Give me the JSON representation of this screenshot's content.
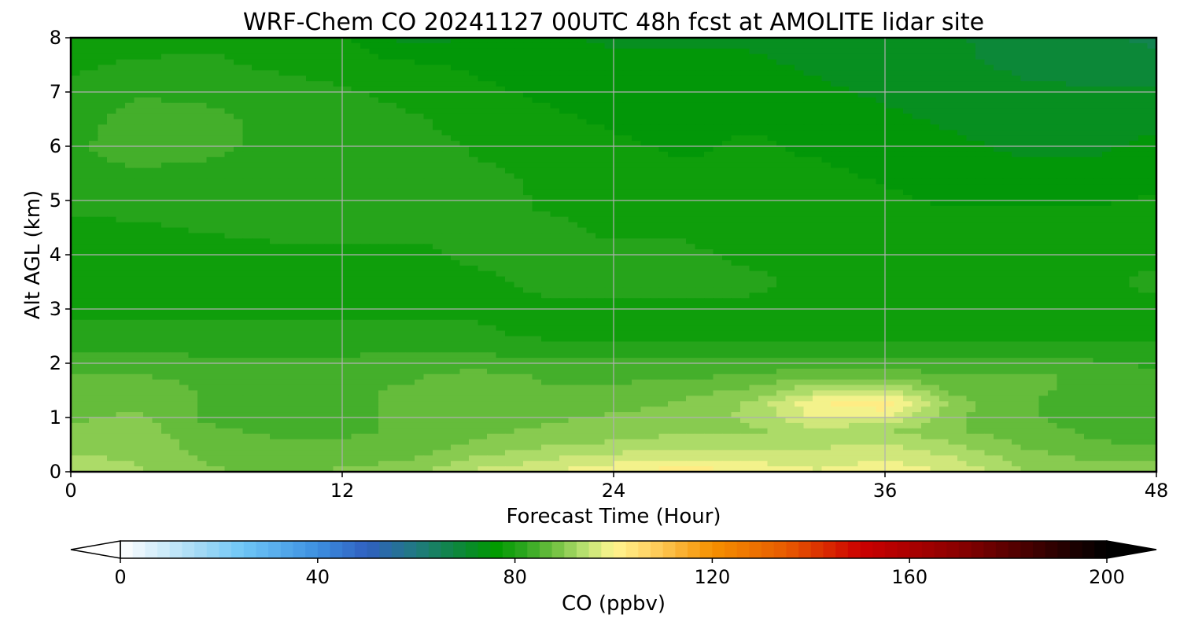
{
  "chart_data": {
    "type": "heatmap",
    "title": "WRF-Chem CO  20241127 00UTC 48h fcst at AMOLITE lidar site",
    "xlabel": "Forecast Time (Hour)",
    "ylabel": "Alt AGL (km)",
    "xlim": [
      0,
      48
    ],
    "ylim": [
      0,
      8
    ],
    "xticks": [
      0,
      12,
      24,
      36,
      48
    ],
    "yticks": [
      0,
      1,
      2,
      3,
      4,
      5,
      6,
      7,
      8
    ],
    "grid": true,
    "x": [
      0,
      3,
      6,
      9,
      12,
      15,
      18,
      21,
      24,
      27,
      30,
      33,
      36,
      39,
      42,
      45,
      48
    ],
    "y": [
      0,
      0.25,
      0.5,
      0.75,
      1.0,
      1.25,
      1.5,
      1.75,
      2.0,
      2.25,
      2.5,
      3.0,
      3.5,
      4.0,
      4.5,
      5.0,
      5.5,
      6.0,
      6.5,
      7.0,
      7.5,
      8.0
    ],
    "z": [
      [
        95,
        92,
        89,
        88,
        89,
        91,
        95,
        97,
        100,
        102,
        101,
        98,
        100,
        97,
        92,
        90,
        92
      ],
      [
        92,
        91,
        88,
        87,
        87,
        88,
        92,
        94,
        96,
        97,
        96,
        95,
        97,
        95,
        90,
        88,
        88
      ],
      [
        90,
        91,
        87,
        86,
        86,
        87,
        89,
        91,
        92,
        93,
        93,
        94,
        95,
        92,
        88,
        86,
        85
      ],
      [
        89,
        90,
        86,
        85,
        85,
        86,
        88,
        89,
        90,
        91,
        91,
        93,
        92,
        89,
        87,
        85,
        84
      ],
      [
        88,
        89,
        85,
        84,
        85,
        86,
        87,
        88,
        89,
        90,
        92,
        98,
        97,
        89,
        86,
        84,
        83
      ],
      [
        88,
        88,
        85,
        84,
        85,
        86,
        87,
        87,
        87,
        89,
        92,
        100,
        103,
        90,
        86,
        84,
        83
      ],
      [
        87,
        88,
        85,
        85,
        85,
        86,
        88,
        86,
        86,
        87,
        89,
        94,
        95,
        88,
        86,
        85,
        83
      ],
      [
        86,
        86,
        84,
        84,
        84,
        85,
        87,
        85,
        85,
        85,
        86,
        88,
        88,
        86,
        86,
        85,
        83
      ],
      [
        84,
        84,
        83,
        83,
        83,
        84,
        84,
        83,
        83,
        83,
        83,
        84,
        84,
        83,
        84,
        83,
        82
      ],
      [
        82,
        82,
        82,
        82,
        82,
        82,
        82,
        81,
        81,
        81,
        81,
        81,
        81,
        81,
        81,
        81,
        81
      ],
      [
        80,
        80,
        80,
        80,
        80,
        80,
        80,
        79,
        79,
        79,
        79,
        79,
        79,
        79,
        79,
        79,
        79
      ],
      [
        79,
        79,
        79,
        79,
        79,
        79,
        79,
        79,
        79,
        79,
        79,
        78,
        78,
        78,
        78,
        78,
        79
      ],
      [
        78,
        78,
        78,
        79,
        79,
        78,
        79,
        80,
        80,
        80,
        80,
        79,
        79,
        79,
        79,
        79,
        80
      ],
      [
        78,
        78,
        78,
        79,
        79,
        79,
        80,
        80,
        80,
        80,
        79,
        79,
        79,
        79,
        79,
        79,
        79
      ],
      [
        79,
        79,
        80,
        80,
        80,
        80,
        80,
        80,
        79,
        79,
        78,
        78,
        78,
        78,
        78,
        78,
        78
      ],
      [
        80,
        81,
        81,
        80,
        81,
        81,
        81,
        79,
        79,
        78,
        78,
        78,
        77,
        76,
        76,
        76,
        77
      ],
      [
        82,
        82,
        82,
        81,
        82,
        82,
        80,
        79,
        78,
        77,
        77,
        77,
        76,
        75,
        74,
        74,
        75
      ],
      [
        82,
        84,
        83,
        82,
        82,
        81,
        79,
        78,
        77,
        76,
        77,
        76,
        75,
        74,
        73,
        73,
        74
      ],
      [
        81,
        84,
        83,
        82,
        82,
        80,
        78,
        77,
        76,
        76,
        76,
        75,
        74,
        73,
        72,
        72,
        73
      ],
      [
        80,
        82,
        82,
        81,
        80,
        78,
        77,
        76,
        75,
        75,
        75,
        74,
        73,
        72,
        71,
        71,
        71
      ],
      [
        79,
        80,
        80,
        79,
        78,
        77,
        76,
        75,
        74,
        74,
        74,
        73,
        72,
        71,
        70,
        69,
        68
      ],
      [
        78,
        78,
        79,
        78,
        77,
        72,
        74,
        74,
        73,
        73,
        73,
        72,
        72,
        71,
        69,
        68,
        67
      ]
    ],
    "colorbar": {
      "label": "CO  (ppbv)",
      "min": 0,
      "max": 200,
      "ticks": [
        0,
        40,
        80,
        120,
        160,
        200
      ],
      "extend": "both",
      "stops": [
        {
          "v": 0,
          "c": "#ffffff"
        },
        {
          "v": 15,
          "c": "#a9dcf5"
        },
        {
          "v": 25,
          "c": "#6ec6f6"
        },
        {
          "v": 40,
          "c": "#3d8fe0"
        },
        {
          "v": 50,
          "c": "#3060c0"
        },
        {
          "v": 60,
          "c": "#207a80"
        },
        {
          "v": 70,
          "c": "#0a8a30"
        },
        {
          "v": 76,
          "c": "#009a00"
        },
        {
          "v": 82,
          "c": "#2ea620"
        },
        {
          "v": 88,
          "c": "#70c040"
        },
        {
          "v": 94,
          "c": "#b8e070"
        },
        {
          "v": 100,
          "c": "#fff590"
        },
        {
          "v": 108,
          "c": "#ffd060"
        },
        {
          "v": 120,
          "c": "#f59000"
        },
        {
          "v": 135,
          "c": "#e85a00"
        },
        {
          "v": 150,
          "c": "#cc0000"
        },
        {
          "v": 170,
          "c": "#8a0000"
        },
        {
          "v": 190,
          "c": "#2a0000"
        },
        {
          "v": 200,
          "c": "#000000"
        }
      ]
    }
  }
}
